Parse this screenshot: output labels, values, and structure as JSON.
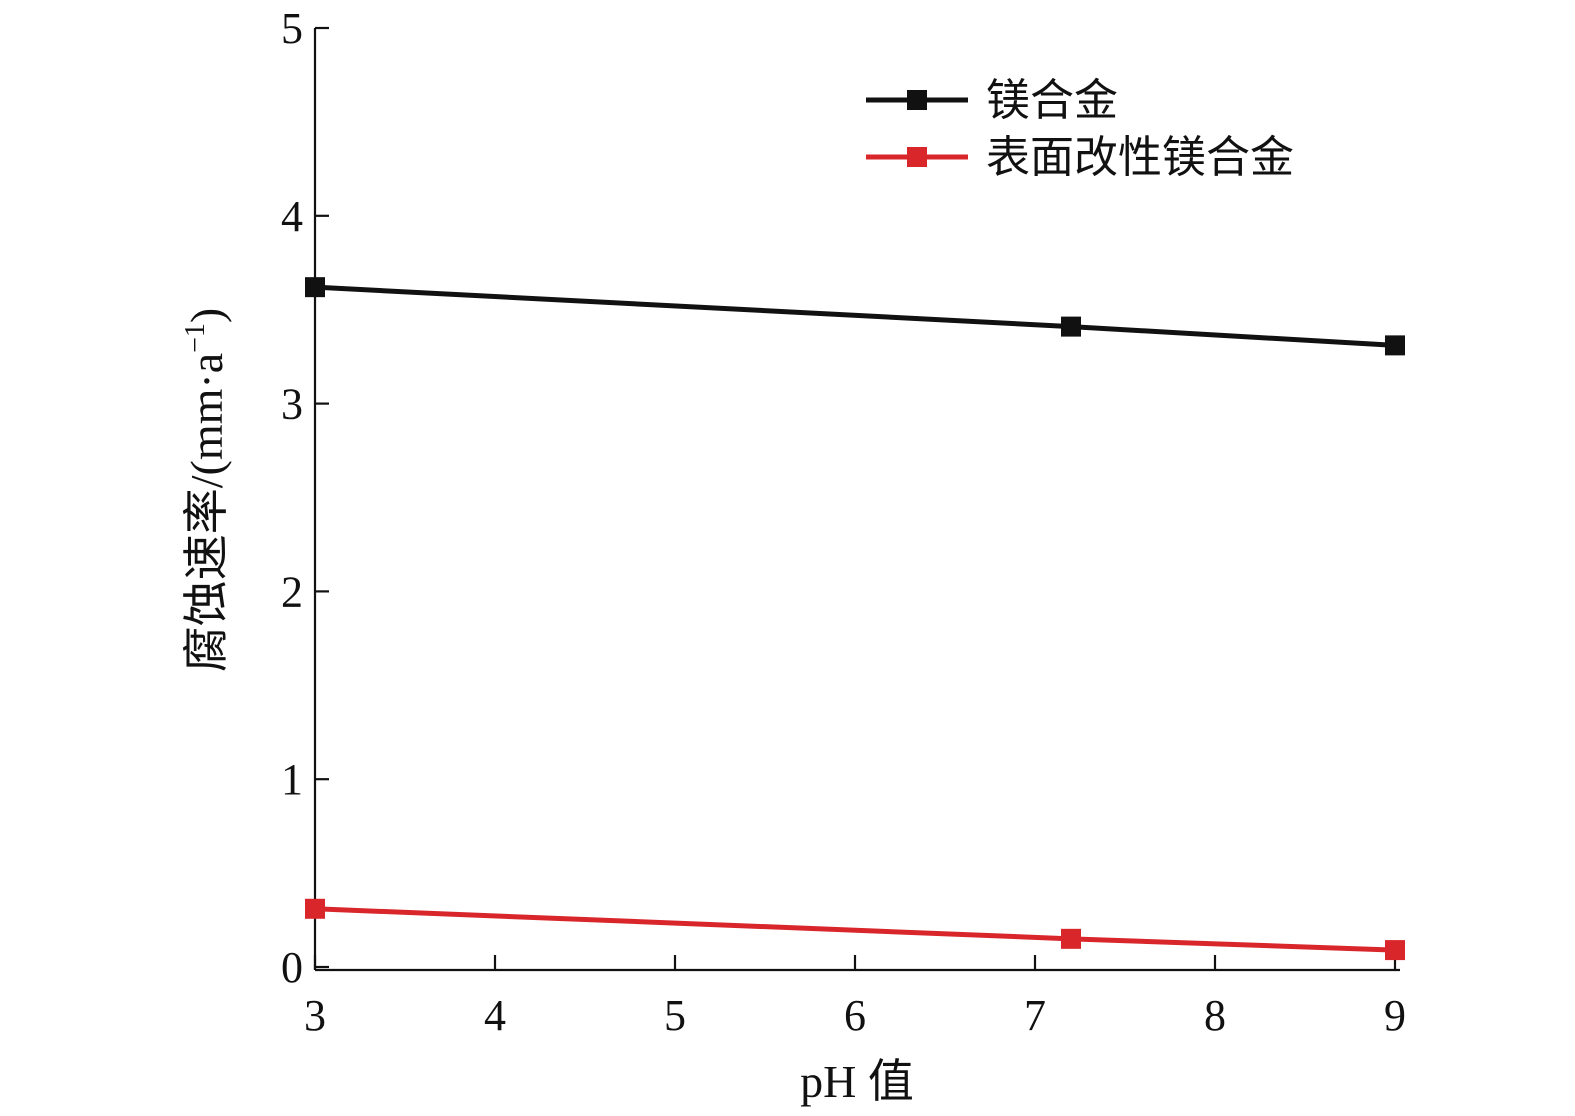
{
  "chart_data": {
    "type": "line",
    "title": "",
    "xlabel": "pH 值",
    "ylabel": "腐蚀速率/(mm·a",
    "ylabel_sup": "−1",
    "ylabel_tail": ")",
    "xlim": [
      3,
      9
    ],
    "ylim": [
      0,
      5
    ],
    "xticks": [
      3,
      4,
      5,
      6,
      7,
      8,
      9
    ],
    "yticks": [
      0,
      1,
      2,
      3,
      4,
      5
    ],
    "grid": false,
    "legend_position": "top-right",
    "series": [
      {
        "name": "镁合金",
        "color": "#111111",
        "marker": "square",
        "points": [
          {
            "x": 3,
            "y": 3.62
          },
          {
            "x": 7.2,
            "y": 3.41
          },
          {
            "x": 9,
            "y": 3.31
          }
        ]
      },
      {
        "name": "表面改性镁合金",
        "color": "#d9262b",
        "marker": "square",
        "points": [
          {
            "x": 3,
            "y": 0.31
          },
          {
            "x": 7.2,
            "y": 0.15
          },
          {
            "x": 9,
            "y": 0.09
          }
        ]
      }
    ]
  }
}
